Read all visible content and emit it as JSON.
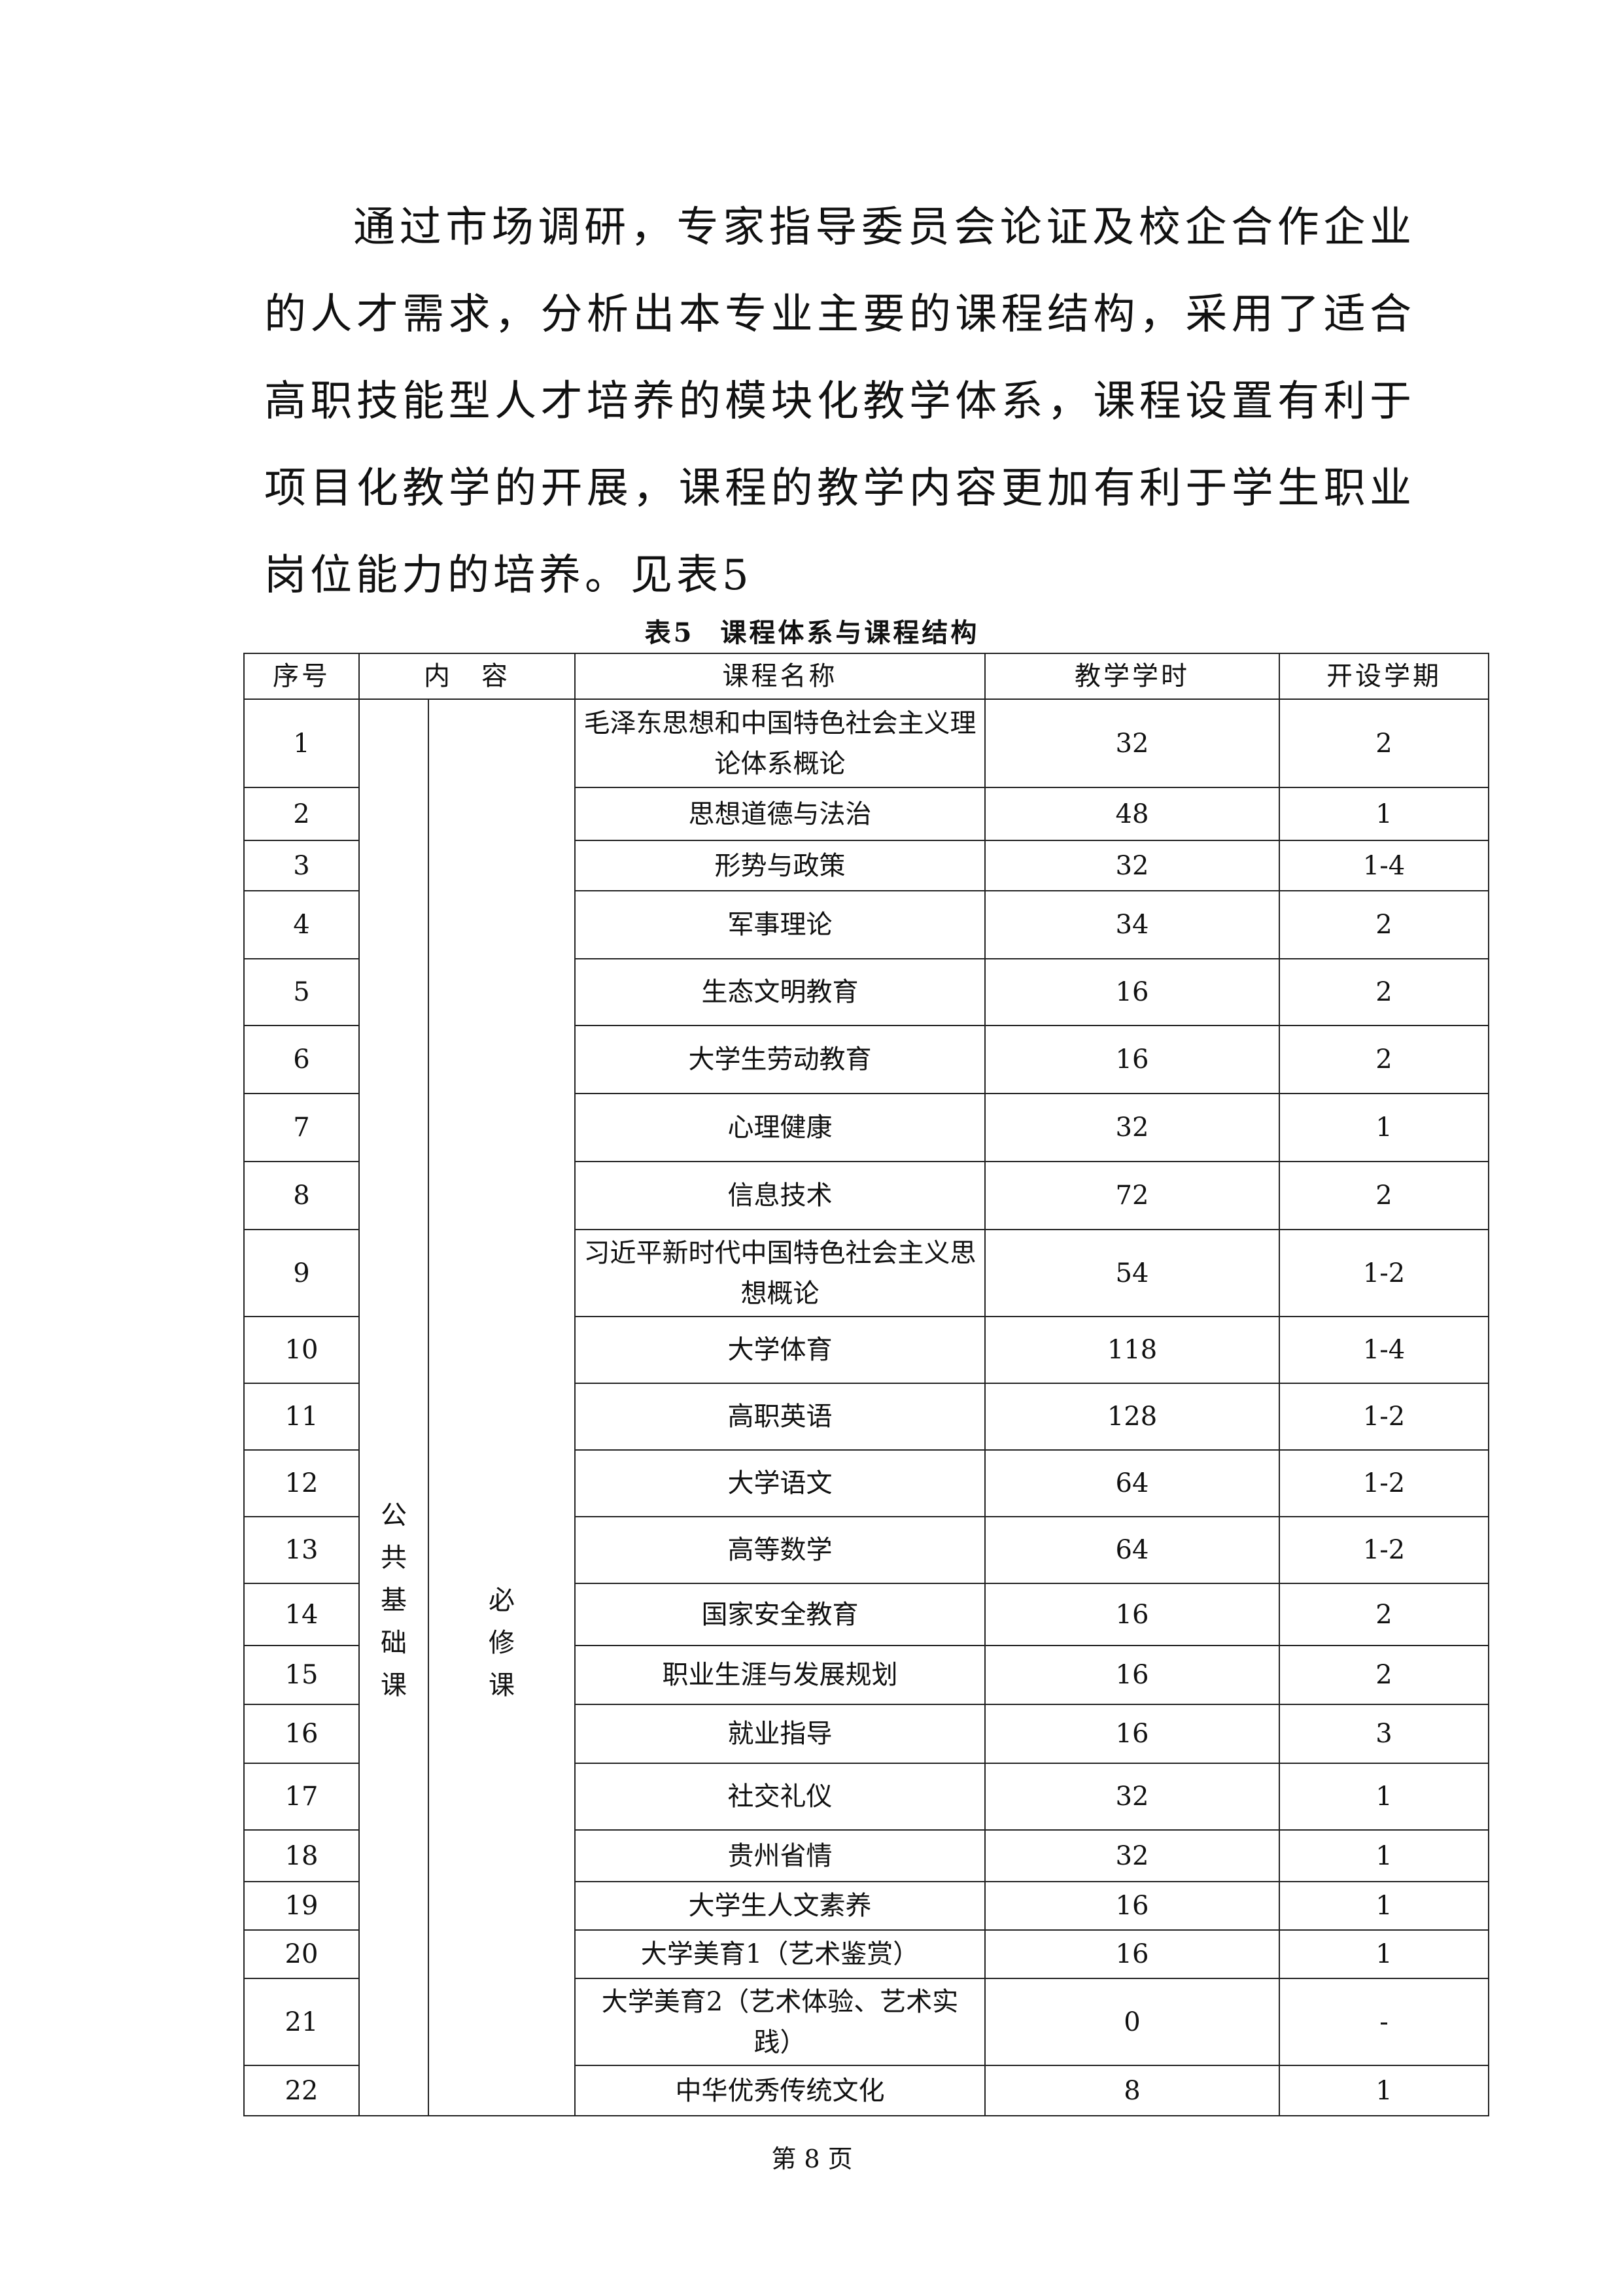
{
  "intro_paragraph": "通过市场调研，专家指导委员会论证及校企合作企业的人才需求，分析出本专业主要的课程结构，采用了适合高职技能型人才培养的模块化教学体系，课程设置有利于项目化教学的开展，课程的教学内容更加有利于学生职业岗位能力的培养。见表5",
  "table": {
    "caption_number": "表5",
    "caption_title": "课程体系与课程结构",
    "headers": {
      "seq": "序号",
      "content": "内　容",
      "name": "课程名称",
      "hours": "教学学时",
      "term": "开设学期"
    },
    "category": "公共基础课",
    "subcategory": "必修课",
    "rows": [
      {
        "seq": "1",
        "name": "毛泽东思想和中国特色社会主义理论体系概论",
        "hours": "32",
        "term": "2"
      },
      {
        "seq": "2",
        "name": "思想道德与法治",
        "hours": "48",
        "term": "1"
      },
      {
        "seq": "3",
        "name": "形势与政策",
        "hours": "32",
        "term": "1-4"
      },
      {
        "seq": "4",
        "name": "军事理论",
        "hours": "34",
        "term": "2"
      },
      {
        "seq": "5",
        "name": "生态文明教育",
        "hours": "16",
        "term": "2"
      },
      {
        "seq": "6",
        "name": "大学生劳动教育",
        "hours": "16",
        "term": "2"
      },
      {
        "seq": "7",
        "name": "心理健康",
        "hours": "32",
        "term": "1"
      },
      {
        "seq": "8",
        "name": "信息技术",
        "hours": "72",
        "term": "2"
      },
      {
        "seq": "9",
        "name": "习近平新时代中国特色社会主义思想概论",
        "hours": "54",
        "term": "1-2"
      },
      {
        "seq": "10",
        "name": "大学体育",
        "hours": "118",
        "term": "1-4"
      },
      {
        "seq": "11",
        "name": "高职英语",
        "hours": "128",
        "term": "1-2"
      },
      {
        "seq": "12",
        "name": "大学语文",
        "hours": "64",
        "term": "1-2"
      },
      {
        "seq": "13",
        "name": "高等数学",
        "hours": "64",
        "term": "1-2"
      },
      {
        "seq": "14",
        "name": "国家安全教育",
        "hours": "16",
        "term": "2"
      },
      {
        "seq": "15",
        "name": "职业生涯与发展规划",
        "hours": "16",
        "term": "2"
      },
      {
        "seq": "16",
        "name": "就业指导",
        "hours": "16",
        "term": "3"
      },
      {
        "seq": "17",
        "name": "社交礼仪",
        "hours": "32",
        "term": "1"
      },
      {
        "seq": "18",
        "name": "贵州省情",
        "hours": "32",
        "term": "1"
      },
      {
        "seq": "19",
        "name": "大学生人文素养",
        "hours": "16",
        "term": "1"
      },
      {
        "seq": "20",
        "name": "大学美育1（艺术鉴赏）",
        "hours": "16",
        "term": "1"
      },
      {
        "seq": "21",
        "name": "大学美育2（艺术体验、艺术实践）",
        "hours": "0",
        "term": "-"
      },
      {
        "seq": "22",
        "name": "中华优秀传统文化",
        "hours": "8",
        "term": "1"
      }
    ]
  },
  "footer": {
    "page_label": "第 8 页"
  }
}
